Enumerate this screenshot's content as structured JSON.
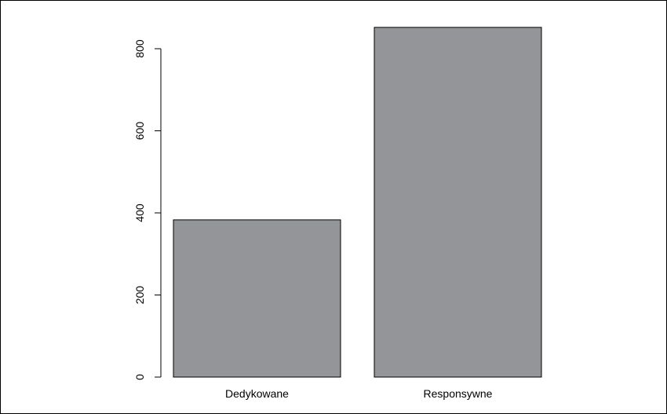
{
  "chart_data": {
    "type": "bar",
    "categories": [
      "Dedykowane",
      "Responsywne"
    ],
    "values": [
      383,
      852
    ],
    "title": "",
    "xlabel": "",
    "ylabel": "",
    "ylim": [
      0,
      880
    ],
    "yticks": [
      0,
      200,
      400,
      600,
      800
    ],
    "ytick_labels": [
      "0",
      "200",
      "400",
      "600",
      "800"
    ],
    "grid": false,
    "bar_color": "#939598",
    "bar_edge_color": "#000000"
  }
}
